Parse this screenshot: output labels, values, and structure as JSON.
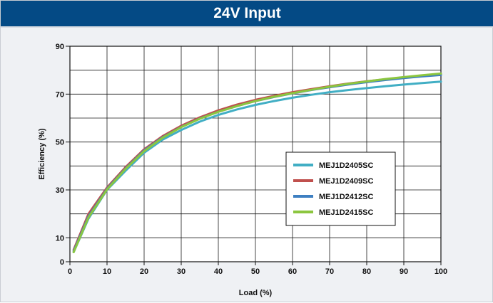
{
  "title": "24V Input",
  "colors": {
    "header_bg": "#044a85",
    "series": [
      "#41aec4",
      "#c0504d",
      "#3e7fc1",
      "#8cc63f"
    ]
  },
  "chart_data": {
    "type": "line",
    "title": "24V Input",
    "xlabel": "Load  (%)",
    "ylabel": "Efficiency  (%)",
    "xlim": [
      0,
      100
    ],
    "ylim": [
      0,
      90
    ],
    "xticks": [
      0,
      10,
      20,
      30,
      40,
      50,
      60,
      70,
      80,
      90,
      100
    ],
    "yticks": [
      0,
      10,
      30,
      50,
      70,
      90
    ],
    "grid": true,
    "legend_position": "right-center",
    "x": [
      1,
      5,
      10,
      15,
      20,
      25,
      30,
      35,
      40,
      45,
      50,
      55,
      60,
      65,
      70,
      75,
      80,
      85,
      90,
      95,
      100
    ],
    "series": [
      {
        "name": "MEJ1D2405SC",
        "color": "#41aec4",
        "values": [
          4,
          18,
          30,
          38,
          45.5,
          51,
          55,
          58.5,
          61.3,
          63.6,
          65.5,
          67.1,
          68.5,
          69.7,
          70.8,
          71.7,
          72.5,
          73.3,
          74,
          74.6,
          75.2
        ]
      },
      {
        "name": "MEJ1D2409SC",
        "color": "#c0504d",
        "values": [
          5,
          20,
          31,
          39.5,
          47,
          52.5,
          56.8,
          60.3,
          63.2,
          65.6,
          67.6,
          69.3,
          70.8,
          72.1,
          73.3,
          74.4,
          75.4,
          76.2,
          77,
          77.7,
          78.3
        ]
      },
      {
        "name": "MEJ1D2412SC",
        "color": "#3e7fc1",
        "values": [
          4.5,
          19,
          30.5,
          39,
          46.5,
          52,
          56.3,
          59.8,
          62.6,
          65,
          67.1,
          68.8,
          70.3,
          71.7,
          72.9,
          74,
          75,
          75.9,
          76.7,
          77.4,
          78
        ]
      },
      {
        "name": "MEJ1D2415SC",
        "color": "#8cc63f",
        "values": [
          4,
          18.5,
          30.2,
          38.8,
          46.2,
          51.8,
          56.2,
          59.7,
          62.6,
          65,
          67.1,
          68.9,
          70.4,
          71.8,
          73.1,
          74.3,
          75.3,
          76.3,
          77.1,
          77.9,
          78.6
        ]
      }
    ]
  }
}
